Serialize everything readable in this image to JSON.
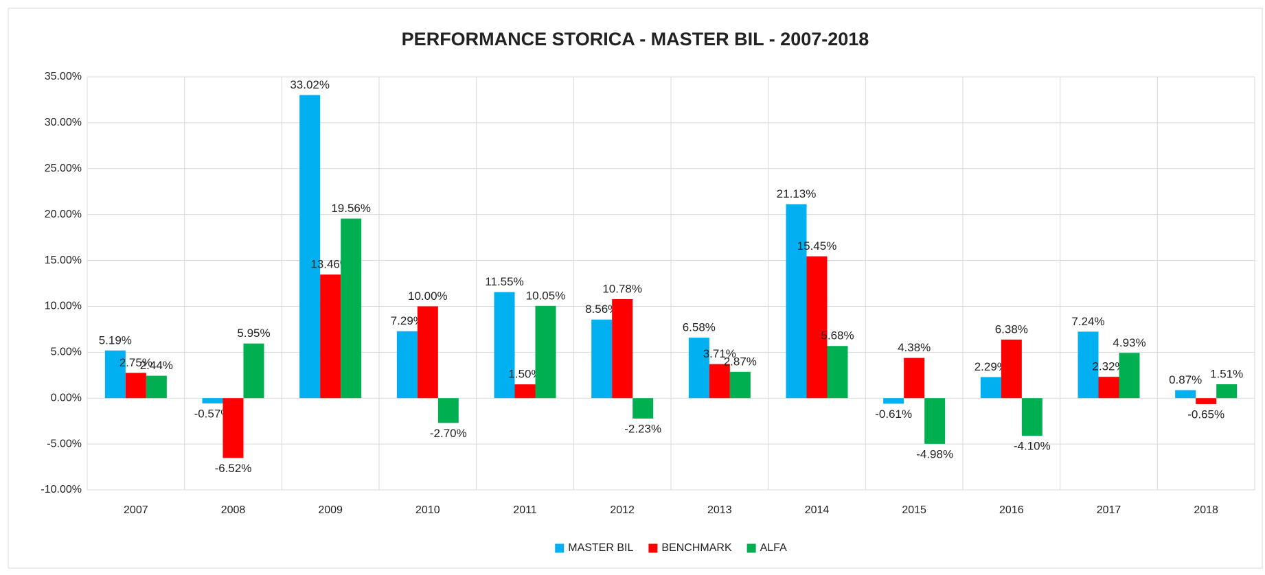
{
  "chart_data": {
    "type": "bar",
    "title": "PERFORMANCE STORICA - MASTER BIL - 2007-2018",
    "categories": [
      "2007",
      "2008",
      "2009",
      "2010",
      "2011",
      "2012",
      "2013",
      "2014",
      "2015",
      "2016",
      "2017",
      "2018"
    ],
    "series": [
      {
        "name": "MASTER BIL",
        "color": "#00b0f0",
        "values": [
          5.19,
          -0.57,
          33.02,
          7.29,
          11.55,
          8.56,
          6.58,
          21.13,
          -0.61,
          2.29,
          7.24,
          0.87
        ],
        "value_labels": [
          "5.19%",
          "-0.57%",
          "33.02%",
          "7.29%",
          "11.55%",
          "8.56%",
          "6.58%",
          "21.13%",
          "-0.61%",
          "2.29%",
          "7.24%",
          "0.87%"
        ]
      },
      {
        "name": "BENCHMARK",
        "color": "#ff0000",
        "values": [
          2.75,
          -6.52,
          13.46,
          10.0,
          1.5,
          10.78,
          3.71,
          15.45,
          4.38,
          6.38,
          2.32,
          -0.65
        ],
        "value_labels": [
          "2.75%",
          "-6.52%",
          "13.46%",
          "10.00%",
          "1.50%",
          "10.78%",
          "3.71%",
          "15.45%",
          "4.38%",
          "6.38%",
          "2.32%",
          "-0.65%"
        ]
      },
      {
        "name": "ALFA",
        "color": "#00b050",
        "values": [
          2.44,
          5.95,
          19.56,
          -2.7,
          10.05,
          -2.23,
          2.87,
          5.68,
          -4.98,
          -4.1,
          4.93,
          1.51
        ],
        "value_labels": [
          "2.44%",
          "5.95%",
          "19.56%",
          "-2.70%",
          "10.05%",
          "-2.23%",
          "2.87%",
          "5.68%",
          "-4.98%",
          "-4.10%",
          "4.93%",
          "1.51%"
        ]
      }
    ],
    "ylim": [
      -10,
      35
    ],
    "yticks": [
      {
        "value": -10,
        "label": "-10.00%"
      },
      {
        "value": -5,
        "label": "-5.00%"
      },
      {
        "value": 0,
        "label": "0.00%"
      },
      {
        "value": 5,
        "label": "5.00%"
      },
      {
        "value": 10,
        "label": "10.00%"
      },
      {
        "value": 15,
        "label": "15.00%"
      },
      {
        "value": 20,
        "label": "20.00%"
      },
      {
        "value": 25,
        "label": "25.00%"
      },
      {
        "value": 30,
        "label": "30.00%"
      },
      {
        "value": 35,
        "label": "35.00%"
      }
    ],
    "grid": true,
    "legend": "bottom"
  }
}
